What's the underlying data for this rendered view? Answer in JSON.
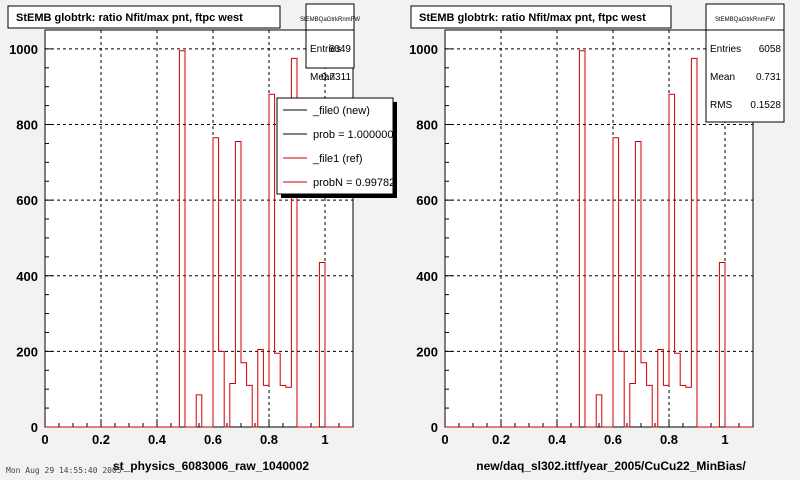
{
  "footer_text": "Mon Aug 29 14:55:40 2005",
  "chart_data": [
    {
      "type": "histogram",
      "title": "StEMB globtrk: ratio Nfit/max pnt, ftpc west",
      "xlabel": "st_physics_6083006_raw_1040002",
      "ylabel": "",
      "xlim": [
        0,
        1.1
      ],
      "ylim": [
        0,
        1050
      ],
      "xticks": [
        0,
        0.2,
        0.4,
        0.6,
        0.8,
        1
      ],
      "xtick_labels": [
        "0",
        "0.2",
        "0.4",
        "0.6",
        "0.8",
        "1"
      ],
      "yticks": [
        0,
        200,
        400,
        600,
        800,
        1000
      ],
      "ytick_labels": [
        "0",
        "200",
        "400",
        "600",
        "800",
        "1000"
      ],
      "grid": true,
      "color": "#cc0000",
      "stats_box": {
        "name": "StEMBQaGtrkRnmFW",
        "rows": [
          {
            "label": "Entries",
            "value": "6049"
          },
          {
            "label": "Mean",
            "value": "0.7311"
          }
        ]
      },
      "legend": {
        "placement": "top-right",
        "entries": [
          {
            "label": "_file0 (new)",
            "color": "#000000"
          },
          {
            "label": "prob = 1.000000",
            "color": "#000000"
          },
          {
            "label": "_file1 (ref)",
            "color": "#cc0000"
          },
          {
            "label": "probN = 0.997822",
            "color": "#cc0000"
          }
        ]
      },
      "bins": [
        {
          "x0": 0.0,
          "x1": 0.02,
          "y": 0
        },
        {
          "x0": 0.02,
          "x1": 0.48,
          "y": 0
        },
        {
          "x0": 0.48,
          "x1": 0.5,
          "y": 995
        },
        {
          "x0": 0.5,
          "x1": 0.54,
          "y": 0
        },
        {
          "x0": 0.54,
          "x1": 0.56,
          "y": 85
        },
        {
          "x0": 0.56,
          "x1": 0.6,
          "y": 0
        },
        {
          "x0": 0.6,
          "x1": 0.62,
          "y": 765
        },
        {
          "x0": 0.62,
          "x1": 0.64,
          "y": 200
        },
        {
          "x0": 0.64,
          "x1": 0.66,
          "y": 0
        },
        {
          "x0": 0.66,
          "x1": 0.68,
          "y": 115
        },
        {
          "x0": 0.68,
          "x1": 0.7,
          "y": 755
        },
        {
          "x0": 0.7,
          "x1": 0.72,
          "y": 170
        },
        {
          "x0": 0.72,
          "x1": 0.74,
          "y": 110
        },
        {
          "x0": 0.74,
          "x1": 0.76,
          "y": 0
        },
        {
          "x0": 0.76,
          "x1": 0.78,
          "y": 205
        },
        {
          "x0": 0.78,
          "x1": 0.8,
          "y": 110
        },
        {
          "x0": 0.8,
          "x1": 0.82,
          "y": 880
        },
        {
          "x0": 0.82,
          "x1": 0.84,
          "y": 195
        },
        {
          "x0": 0.84,
          "x1": 0.86,
          "y": 110
        },
        {
          "x0": 0.86,
          "x1": 0.88,
          "y": 105
        },
        {
          "x0": 0.88,
          "x1": 0.9,
          "y": 975
        },
        {
          "x0": 0.9,
          "x1": 0.98,
          "y": 0
        },
        {
          "x0": 0.98,
          "x1": 1.0,
          "y": 435
        },
        {
          "x0": 1.0,
          "x1": 1.1,
          "y": 0
        }
      ]
    },
    {
      "type": "histogram",
      "title": "StEMB globtrk: ratio Nfit/max pnt, ftpc west",
      "xlabel": "new/daq_sl302.ittf/year_2005/CuCu22_MinBias/",
      "ylabel": "",
      "xlim": [
        0,
        1.1
      ],
      "ylim": [
        0,
        1050
      ],
      "xticks": [
        0,
        0.2,
        0.4,
        0.6,
        0.8,
        1
      ],
      "xtick_labels": [
        "0",
        "0.2",
        "0.4",
        "0.6",
        "0.8",
        "1"
      ],
      "yticks": [
        0,
        200,
        400,
        600,
        800,
        1000
      ],
      "ytick_labels": [
        "0",
        "200",
        "400",
        "600",
        "800",
        "1000"
      ],
      "grid": true,
      "color": "#cc0000",
      "stats_box": {
        "name": "StEMBQaGtrkRnmFW",
        "rows": [
          {
            "label": "Entries",
            "value": "6058"
          },
          {
            "label": "Mean",
            "value": "0.731"
          },
          {
            "label": "RMS",
            "value": "0.1528"
          }
        ]
      },
      "legend": null,
      "bins": [
        {
          "x0": 0.0,
          "x1": 0.48,
          "y": 0
        },
        {
          "x0": 0.48,
          "x1": 0.5,
          "y": 995
        },
        {
          "x0": 0.5,
          "x1": 0.54,
          "y": 0
        },
        {
          "x0": 0.54,
          "x1": 0.56,
          "y": 85
        },
        {
          "x0": 0.56,
          "x1": 0.6,
          "y": 0
        },
        {
          "x0": 0.6,
          "x1": 0.62,
          "y": 765
        },
        {
          "x0": 0.62,
          "x1": 0.64,
          "y": 200
        },
        {
          "x0": 0.64,
          "x1": 0.66,
          "y": 0
        },
        {
          "x0": 0.66,
          "x1": 0.68,
          "y": 115
        },
        {
          "x0": 0.68,
          "x1": 0.7,
          "y": 755
        },
        {
          "x0": 0.7,
          "x1": 0.72,
          "y": 170
        },
        {
          "x0": 0.72,
          "x1": 0.74,
          "y": 110
        },
        {
          "x0": 0.74,
          "x1": 0.76,
          "y": 0
        },
        {
          "x0": 0.76,
          "x1": 0.78,
          "y": 205
        },
        {
          "x0": 0.78,
          "x1": 0.8,
          "y": 110
        },
        {
          "x0": 0.8,
          "x1": 0.82,
          "y": 880
        },
        {
          "x0": 0.82,
          "x1": 0.84,
          "y": 195
        },
        {
          "x0": 0.84,
          "x1": 0.86,
          "y": 110
        },
        {
          "x0": 0.86,
          "x1": 0.88,
          "y": 105
        },
        {
          "x0": 0.88,
          "x1": 0.9,
          "y": 975
        },
        {
          "x0": 0.9,
          "x1": 0.98,
          "y": 0
        },
        {
          "x0": 0.98,
          "x1": 1.0,
          "y": 435
        },
        {
          "x0": 1.0,
          "x1": 1.1,
          "y": 0
        }
      ]
    }
  ]
}
